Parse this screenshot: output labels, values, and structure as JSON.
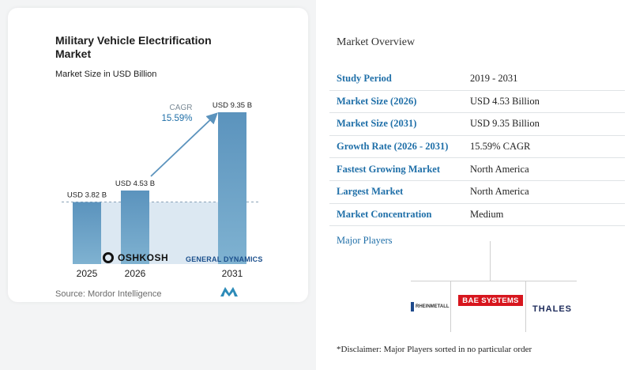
{
  "chart": {
    "title": "Military Vehicle Electrification Market",
    "subtitle": "Market Size in USD Billion",
    "source": "Source: Mordor Intelligence",
    "cagr_label": "CAGR",
    "cagr_value": "15.59%"
  },
  "chart_data": {
    "type": "bar",
    "categories": [
      "2025",
      "2026",
      "2031"
    ],
    "values": [
      3.82,
      4.53,
      9.35
    ],
    "data_labels": [
      "USD 3.82 B",
      "USD 4.53 B",
      "USD 9.35 B"
    ],
    "title": "Military Vehicle Electrification Market",
    "subtitle": "Market Size in USD Billion",
    "ylabel": "",
    "xlabel": "",
    "ylim": [
      0,
      10
    ],
    "grid": false,
    "annotation": "CAGR 15.59%",
    "colors": {
      "bar": "#5b93bd",
      "bar_gradient_end": "#7fb2d1",
      "shade": "#dce8f2",
      "arrow": "#5b93bd"
    }
  },
  "overview": {
    "title": "Market Overview",
    "rows": [
      {
        "key": "Study Period",
        "value": "2019 - 2031"
      },
      {
        "key": "Market Size (2026)",
        "value": "USD 4.53 Billion"
      },
      {
        "key": "Market Size (2031)",
        "value": "USD 9.35 Billion"
      },
      {
        "key": "Growth Rate (2026 - 2031)",
        "value": "15.59% CAGR"
      },
      {
        "key": "Fastest Growing Market",
        "value": "North America"
      },
      {
        "key": "Largest Market",
        "value": "North America"
      },
      {
        "key": "Market Concentration",
        "value": "Medium"
      }
    ]
  },
  "players": {
    "title": "Major Players",
    "logos": {
      "oshkosh": "OSHKOSH",
      "general_dynamics": "GENERAL DYNAMICS",
      "bae": "BAE SYSTEMS",
      "rheinmetall": "RHEINMETALL",
      "thales": "THALES"
    }
  },
  "disclaimer": "*Disclaimer: Major Players sorted in no particular order",
  "colors": {
    "accent": "#1f6fa8",
    "bae_red": "#d7161e"
  }
}
